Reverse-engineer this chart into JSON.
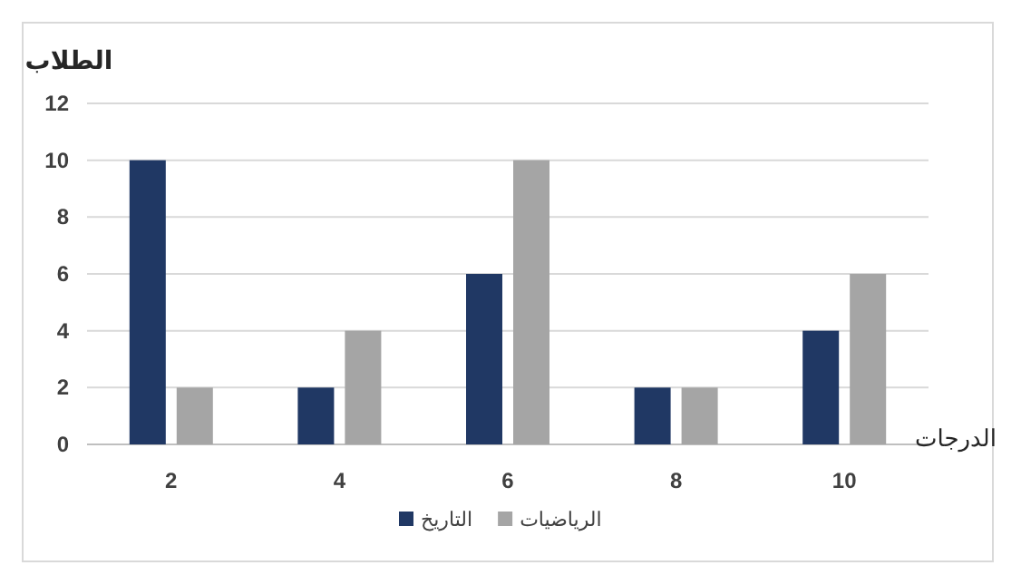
{
  "chart_data": {
    "type": "bar",
    "ylabel": "الطلاب",
    "xlabel": "الدرجات",
    "categories": [
      "2",
      "4",
      "6",
      "8",
      "10"
    ],
    "series": [
      {
        "name": "التاريخ",
        "color": "#203864",
        "values": [
          10,
          2,
          6,
          2,
          4
        ]
      },
      {
        "name": "الرياضيات",
        "color": "#a5a5a5",
        "values": [
          2,
          4,
          10,
          2,
          6
        ]
      }
    ],
    "ylim": [
      0,
      12
    ],
    "yticks": [
      0,
      2,
      4,
      6,
      8,
      10,
      12
    ],
    "grid": "y",
    "legend": "bottom"
  }
}
